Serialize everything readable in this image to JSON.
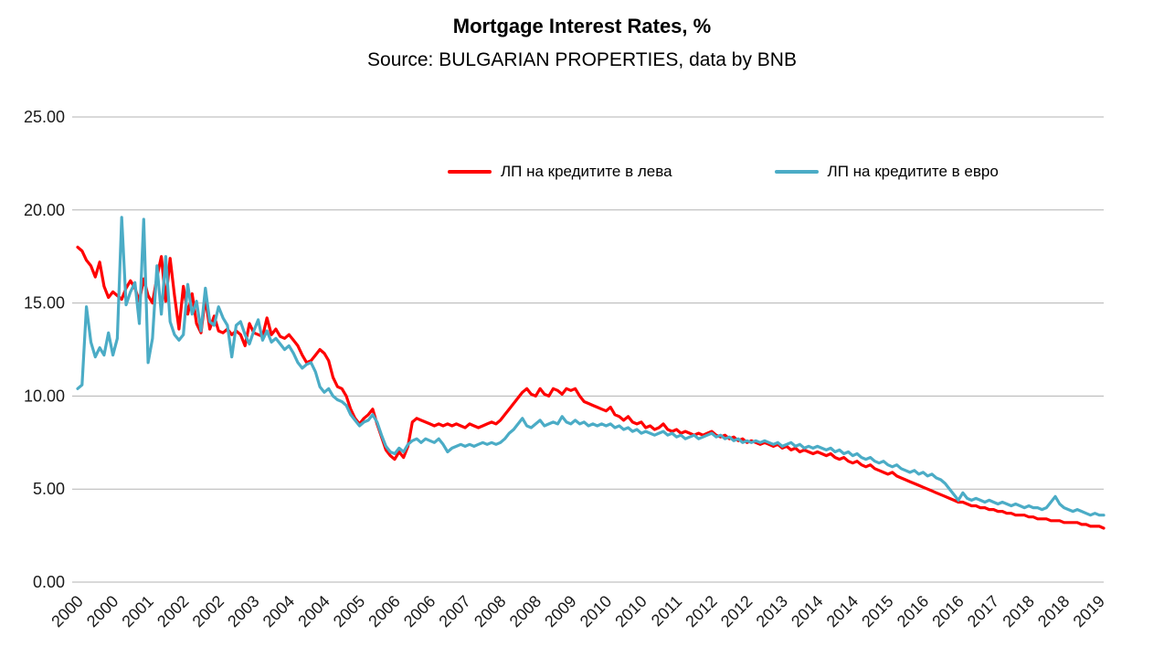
{
  "chart_data": {
    "type": "line",
    "title": "Mortgage Interest Rates, %",
    "subtitle": "Source: BULGARIAN PROPERTIES, data by BNB",
    "x_start": "2000-01",
    "x_frequency": "monthly",
    "x_tick_every": 8,
    "x_tick_labels": [
      "2000",
      "2000",
      "2001",
      "2002",
      "2002",
      "2003",
      "2004",
      "2004",
      "2005",
      "2006",
      "2006",
      "2007",
      "2008",
      "2008",
      "2009",
      "2010",
      "2010",
      "2011",
      "2012",
      "2012",
      "2013",
      "2014",
      "2014",
      "2015",
      "2016",
      "2016",
      "2017",
      "2018",
      "2018",
      "2019"
    ],
    "ylim": [
      0,
      25
    ],
    "y_ticks": [
      0,
      5,
      10,
      15,
      20,
      25
    ],
    "y_tick_labels": [
      "0.00",
      "5.00",
      "10.00",
      "15.00",
      "20.00",
      "25.00"
    ],
    "grid": "horizontal",
    "legend_position": "top-inside",
    "colors": {
      "grid": "#b3b3b3",
      "text": "#1a1a1a"
    },
    "series": [
      {
        "name": "ЛП на кредитите в лева",
        "color": "#ff0000",
        "values": [
          18.0,
          17.8,
          17.3,
          17.0,
          16.4,
          17.2,
          15.9,
          15.3,
          15.6,
          15.4,
          15.2,
          15.8,
          16.2,
          15.8,
          15.1,
          16.3,
          15.4,
          15.0,
          16.4,
          17.5,
          15.1,
          17.4,
          15.4,
          13.6,
          15.9,
          14.4,
          15.5,
          13.9,
          13.4,
          15.3,
          13.6,
          14.3,
          13.5,
          13.4,
          13.6,
          13.3,
          13.5,
          13.3,
          12.7,
          13.9,
          13.4,
          13.3,
          13.2,
          14.2,
          13.3,
          13.6,
          13.2,
          13.1,
          13.3,
          13.0,
          12.7,
          12.2,
          11.8,
          11.9,
          12.2,
          12.5,
          12.3,
          11.9,
          11.0,
          10.5,
          10.4,
          10.0,
          9.3,
          8.8,
          8.5,
          8.8,
          9.0,
          9.3,
          8.5,
          7.8,
          7.1,
          6.8,
          6.6,
          7.0,
          6.7,
          7.3,
          8.6,
          8.8,
          8.7,
          8.6,
          8.5,
          8.4,
          8.5,
          8.4,
          8.5,
          8.4,
          8.5,
          8.4,
          8.3,
          8.5,
          8.4,
          8.3,
          8.4,
          8.5,
          8.6,
          8.5,
          8.7,
          9.0,
          9.3,
          9.6,
          9.9,
          10.2,
          10.4,
          10.1,
          10.0,
          10.4,
          10.1,
          10.0,
          10.4,
          10.3,
          10.1,
          10.4,
          10.3,
          10.4,
          10.0,
          9.7,
          9.6,
          9.5,
          9.4,
          9.3,
          9.2,
          9.4,
          9.0,
          8.9,
          8.7,
          8.9,
          8.6,
          8.5,
          8.6,
          8.3,
          8.4,
          8.2,
          8.3,
          8.5,
          8.2,
          8.1,
          8.2,
          8.0,
          8.1,
          8.0,
          7.9,
          8.0,
          7.9,
          8.0,
          8.1,
          7.9,
          7.8,
          7.9,
          7.7,
          7.8,
          7.6,
          7.7,
          7.5,
          7.6,
          7.5,
          7.4,
          7.5,
          7.4,
          7.3,
          7.4,
          7.2,
          7.3,
          7.1,
          7.2,
          7.0,
          7.1,
          7.0,
          6.9,
          7.0,
          6.9,
          6.8,
          6.9,
          6.7,
          6.6,
          6.7,
          6.5,
          6.4,
          6.5,
          6.3,
          6.2,
          6.3,
          6.1,
          6.0,
          5.9,
          5.8,
          5.9,
          5.7,
          5.6,
          5.5,
          5.4,
          5.3,
          5.2,
          5.1,
          5.0,
          4.9,
          4.8,
          4.7,
          4.6,
          4.5,
          4.4,
          4.3,
          4.3,
          4.2,
          4.1,
          4.1,
          4.0,
          4.0,
          3.9,
          3.9,
          3.8,
          3.8,
          3.7,
          3.7,
          3.6,
          3.6,
          3.6,
          3.5,
          3.5,
          3.4,
          3.4,
          3.4,
          3.3,
          3.3,
          3.3,
          3.2,
          3.2,
          3.2,
          3.2,
          3.1,
          3.1,
          3.0,
          3.0,
          3.0,
          2.9
        ]
      },
      {
        "name": "ЛП на кредитите в евро",
        "color": "#4bacc6",
        "values": [
          10.4,
          10.6,
          14.8,
          12.9,
          12.1,
          12.6,
          12.2,
          13.4,
          12.2,
          13.1,
          19.6,
          14.9,
          15.6,
          16.1,
          13.9,
          19.5,
          11.8,
          13.1,
          17.0,
          14.4,
          17.5,
          14.0,
          13.3,
          13.0,
          13.3,
          16.0,
          14.4,
          15.1,
          13.5,
          15.8,
          14.0,
          13.8,
          14.8,
          14.2,
          13.8,
          12.1,
          13.8,
          14.0,
          13.3,
          12.8,
          13.5,
          14.1,
          13.0,
          13.5,
          12.9,
          13.1,
          12.8,
          12.5,
          12.7,
          12.3,
          11.8,
          11.5,
          11.7,
          11.8,
          11.3,
          10.5,
          10.2,
          10.4,
          10.0,
          9.8,
          9.7,
          9.5,
          9.0,
          8.7,
          8.4,
          8.6,
          8.7,
          9.0,
          8.6,
          7.9,
          7.3,
          7.0,
          6.9,
          7.2,
          7.0,
          7.4,
          7.6,
          7.7,
          7.5,
          7.7,
          7.6,
          7.5,
          7.7,
          7.4,
          7.0,
          7.2,
          7.3,
          7.4,
          7.3,
          7.4,
          7.3,
          7.4,
          7.5,
          7.4,
          7.5,
          7.4,
          7.5,
          7.7,
          8.0,
          8.2,
          8.5,
          8.8,
          8.4,
          8.3,
          8.5,
          8.7,
          8.4,
          8.5,
          8.6,
          8.5,
          8.9,
          8.6,
          8.5,
          8.7,
          8.5,
          8.6,
          8.4,
          8.5,
          8.4,
          8.5,
          8.4,
          8.5,
          8.3,
          8.4,
          8.2,
          8.3,
          8.1,
          8.2,
          8.0,
          8.1,
          8.0,
          7.9,
          8.0,
          8.1,
          7.9,
          8.0,
          7.8,
          7.9,
          7.7,
          7.8,
          7.9,
          7.7,
          7.8,
          7.9,
          8.0,
          7.8,
          7.9,
          7.7,
          7.8,
          7.6,
          7.7,
          7.5,
          7.6,
          7.5,
          7.6,
          7.5,
          7.6,
          7.5,
          7.4,
          7.5,
          7.3,
          7.4,
          7.5,
          7.3,
          7.4,
          7.2,
          7.3,
          7.2,
          7.3,
          7.2,
          7.1,
          7.2,
          7.0,
          7.1,
          6.9,
          7.0,
          6.8,
          6.9,
          6.7,
          6.6,
          6.7,
          6.5,
          6.4,
          6.5,
          6.3,
          6.2,
          6.3,
          6.1,
          6.0,
          5.9,
          6.0,
          5.8,
          5.9,
          5.7,
          5.8,
          5.6,
          5.5,
          5.3,
          5.0,
          4.7,
          4.4,
          4.8,
          4.5,
          4.4,
          4.5,
          4.4,
          4.3,
          4.4,
          4.3,
          4.2,
          4.3,
          4.2,
          4.1,
          4.2,
          4.1,
          4.0,
          4.1,
          4.0,
          4.0,
          3.9,
          4.0,
          4.3,
          4.6,
          4.2,
          4.0,
          3.9,
          3.8,
          3.9,
          3.8,
          3.7,
          3.6,
          3.7,
          3.6,
          3.6
        ]
      }
    ]
  }
}
